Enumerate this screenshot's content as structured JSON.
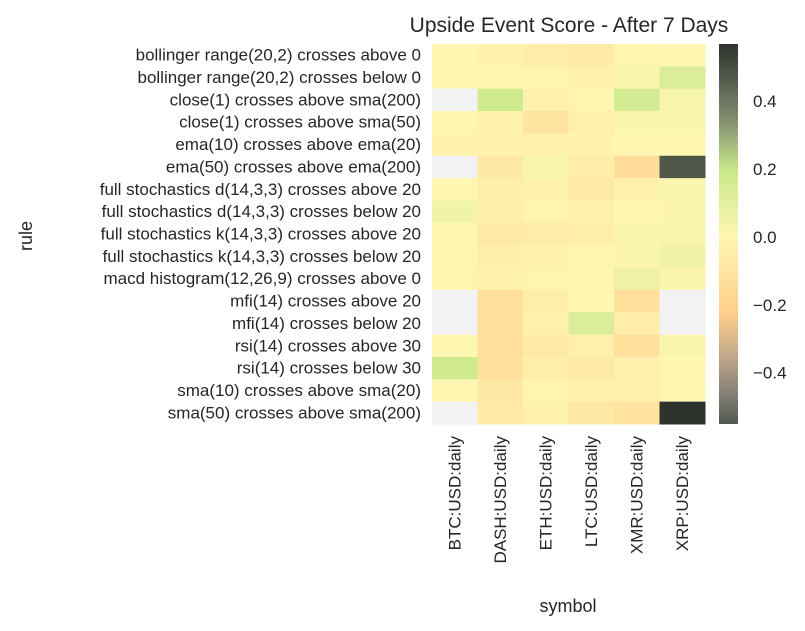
{
  "chart_data": {
    "type": "heatmap",
    "title": "Upside Event Score - After 7 Days",
    "xlabel": "symbol",
    "ylabel": "rule",
    "columns": [
      "BTC:USD:daily",
      "DASH:USD:daily",
      "ETH:USD:daily",
      "LTC:USD:daily",
      "XMR:USD:daily",
      "XRP:USD:daily"
    ],
    "rows": [
      "bollinger range(20,2) crosses above 0",
      "bollinger range(20,2) crosses below 0",
      "close(1) crosses above sma(200)",
      "close(1) crosses above sma(50)",
      "ema(10) crosses above ema(20)",
      "ema(50) crosses above ema(200)",
      "full stochastics d(14,3,3) crosses above 20",
      "full stochastics d(14,3,3) crosses below 20",
      "full stochastics k(14,3,3) crosses above 20",
      "full stochastics k(14,3,3) crosses below 20",
      "macd histogram(12,26,9) crosses above 0",
      "mfi(14) crosses above 20",
      "mfi(14) crosses below 20",
      "rsi(14) crosses above 30",
      "rsi(14) crosses below 30",
      "sma(10) crosses above sma(20)",
      "sma(50) crosses above sma(200)"
    ],
    "values": [
      [
        0.0,
        -0.02,
        -0.05,
        -0.06,
        -0.01,
        0.0
      ],
      [
        0.0,
        0.0,
        -0.01,
        -0.02,
        0.02,
        0.13
      ],
      [
        null,
        0.17,
        -0.03,
        -0.01,
        0.16,
        0.03
      ],
      [
        0.0,
        -0.02,
        -0.1,
        -0.03,
        0.01,
        0.01
      ],
      [
        -0.02,
        -0.02,
        -0.03,
        -0.02,
        0.0,
        0.0
      ],
      [
        null,
        -0.08,
        0.03,
        -0.05,
        -0.14,
        0.48
      ],
      [
        0.0,
        -0.04,
        -0.02,
        -0.07,
        -0.03,
        0.02
      ],
      [
        0.05,
        -0.04,
        -0.01,
        -0.03,
        0.0,
        0.01
      ],
      [
        0.0,
        -0.06,
        -0.05,
        -0.04,
        0.01,
        0.02
      ],
      [
        0.0,
        -0.04,
        -0.02,
        -0.01,
        0.01,
        0.05
      ],
      [
        -0.01,
        -0.02,
        -0.01,
        0.0,
        0.06,
        0.01
      ],
      [
        null,
        -0.13,
        -0.04,
        0.0,
        -0.13,
        null
      ],
      [
        null,
        -0.13,
        -0.03,
        0.13,
        -0.05,
        null
      ],
      [
        0.0,
        -0.13,
        -0.06,
        -0.03,
        -0.12,
        0.02
      ],
      [
        0.17,
        -0.12,
        -0.04,
        -0.06,
        -0.03,
        0.0
      ],
      [
        0.0,
        -0.08,
        -0.01,
        -0.03,
        -0.03,
        0.0
      ],
      [
        null,
        -0.07,
        -0.02,
        -0.08,
        -0.11,
        0.57
      ]
    ],
    "vmin": -0.55,
    "vmax": 0.57,
    "colorbar_ticks": [
      0.4,
      0.2,
      0.0,
      -0.2,
      -0.4
    ],
    "colorbar_tick_labels": [
      "0.4",
      "0.2",
      "0.0",
      "−0.2",
      "−0.4"
    ],
    "colormap_stops": [
      {
        "v": -0.55,
        "color": "#505a52"
      },
      {
        "v": -0.45,
        "color": "#8a8478"
      },
      {
        "v": -0.35,
        "color": "#c0a88a"
      },
      {
        "v": -0.22,
        "color": "#ffcf8a"
      },
      {
        "v": 0.0,
        "color": "#fff6b2"
      },
      {
        "v": 0.2,
        "color": "#c8e88a"
      },
      {
        "v": 0.35,
        "color": "#828a70"
      },
      {
        "v": 0.57,
        "color": "#2e332d"
      }
    ],
    "missing_color": "#f2f2f2",
    "grid": false,
    "colorbar": "right"
  }
}
